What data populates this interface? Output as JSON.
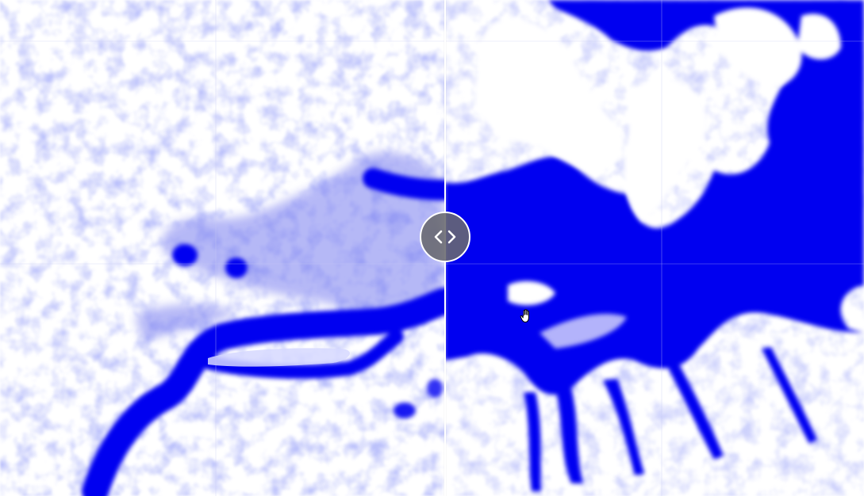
{
  "map": {
    "water_color": "#0000f0",
    "haze_color": "#7a7ff0",
    "background_color": "#ffffff",
    "divider_color": "#ffffff",
    "handle_color": "#69696e"
  },
  "swipe_control": {
    "icon": "chevron-left-right-icon"
  },
  "cursor": {
    "icon": "hand-pan-icon"
  }
}
